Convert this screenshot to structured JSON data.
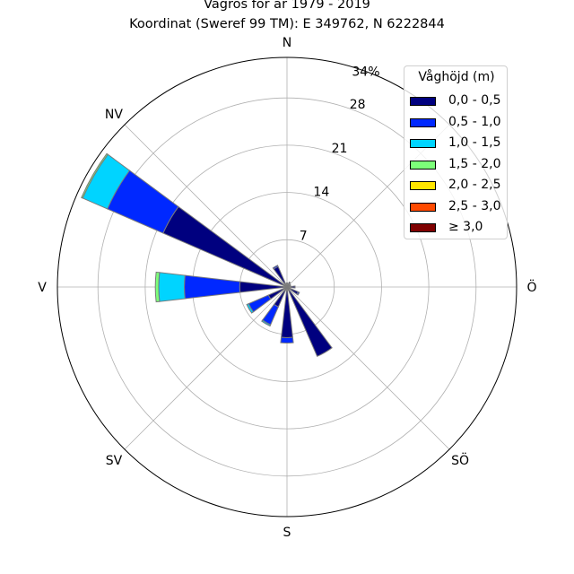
{
  "title": "Vågros för år 1979 - 2019",
  "subtitle": "Koordinat (Sweref 99 TM): E 349762, N 6222844",
  "chart_data": {
    "type": "windrose",
    "direction_labels": [
      "N",
      "NV",
      "V",
      "SV",
      "S",
      "SÖ",
      "Ö",
      "NÖ"
    ],
    "radial_ticks": [
      7,
      14,
      21,
      28
    ],
    "radial_max": 34,
    "radial_max_label": "34%",
    "grid": true,
    "legend": {
      "title": "Våghöjd (m)",
      "position": "top-right",
      "entries": [
        {
          "label": "0,0 - 0,5",
          "color": "#00007f"
        },
        {
          "label": "0,5 - 1,0",
          "color": "#0028ff"
        },
        {
          "label": "1,0 - 1,5",
          "color": "#00d4ff"
        },
        {
          "label": "1,5 - 2,0",
          "color": "#7cff79"
        },
        {
          "label": "2,0 - 2,5",
          "color": "#ffe500"
        },
        {
          "label": "2,5 - 3,0",
          "color": "#ff4a00"
        },
        {
          "label": "≥ 3,0",
          "color": "#7f0000"
        }
      ]
    },
    "series": [
      {
        "direction_deg": 0,
        "cumulative": [
          0.6
        ]
      },
      {
        "direction_deg": 30,
        "cumulative": [
          0.8
        ]
      },
      {
        "direction_deg": 60,
        "cumulative": [
          0.6
        ]
      },
      {
        "direction_deg": 90,
        "cumulative": [
          1.2
        ]
      },
      {
        "direction_deg": 120,
        "cumulative": [
          1.8,
          2.0
        ]
      },
      {
        "direction_deg": 150,
        "cumulative": [
          11.2
        ]
      },
      {
        "direction_deg": 180,
        "cumulative": [
          7.5,
          8.3
        ]
      },
      {
        "direction_deg": 210,
        "cumulative": [
          3.2,
          6.1,
          6.3
        ]
      },
      {
        "direction_deg": 240,
        "cumulative": [
          3.0,
          6.2,
          6.5
        ]
      },
      {
        "direction_deg": 270,
        "cumulative": [
          7.0,
          15.2,
          19.0,
          19.5
        ]
      },
      {
        "direction_deg": 300,
        "cumulative": [
          20.0,
          29.0,
          33.0,
          33.2
        ]
      },
      {
        "direction_deg": 330,
        "cumulative": [
          3.3,
          3.5
        ]
      }
    ]
  }
}
